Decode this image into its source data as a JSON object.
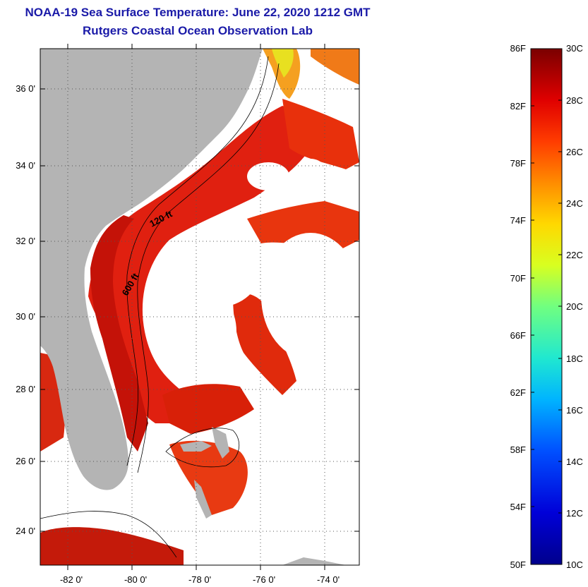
{
  "title": {
    "line1": "NOAA-19 Sea Surface Temperature:  June 22, 2020 1212 GMT",
    "line2": "Rutgers Coastal Ocean Observation Lab"
  },
  "map": {
    "lat_labels": [
      "36 0'",
      "34 0'",
      "32 0'",
      "30 0'",
      "28 0'",
      "26 0'",
      "24 0'"
    ],
    "lon_labels": [
      "-82 0'",
      "-80 0'",
      "-78 0'",
      "-76 0'",
      "-74 0'"
    ],
    "contour_labels": [
      "120 ft",
      "600 ft"
    ],
    "colors": {
      "land": "#b4b4b4",
      "warm_water": "#e8250c",
      "hot_water": "#c01008",
      "cloud": "#ffffff",
      "cool_water": "#f5a020"
    }
  },
  "colorbar": {
    "fahrenheit_labels": [
      "86F",
      "82F",
      "78F",
      "74F",
      "70F",
      "66F",
      "62F",
      "58F",
      "54F",
      "50F"
    ],
    "celsius_labels": [
      "30C",
      "28C",
      "26C",
      "24C",
      "22C",
      "20C",
      "18C",
      "16C",
      "14C",
      "12C",
      "10C"
    ]
  }
}
